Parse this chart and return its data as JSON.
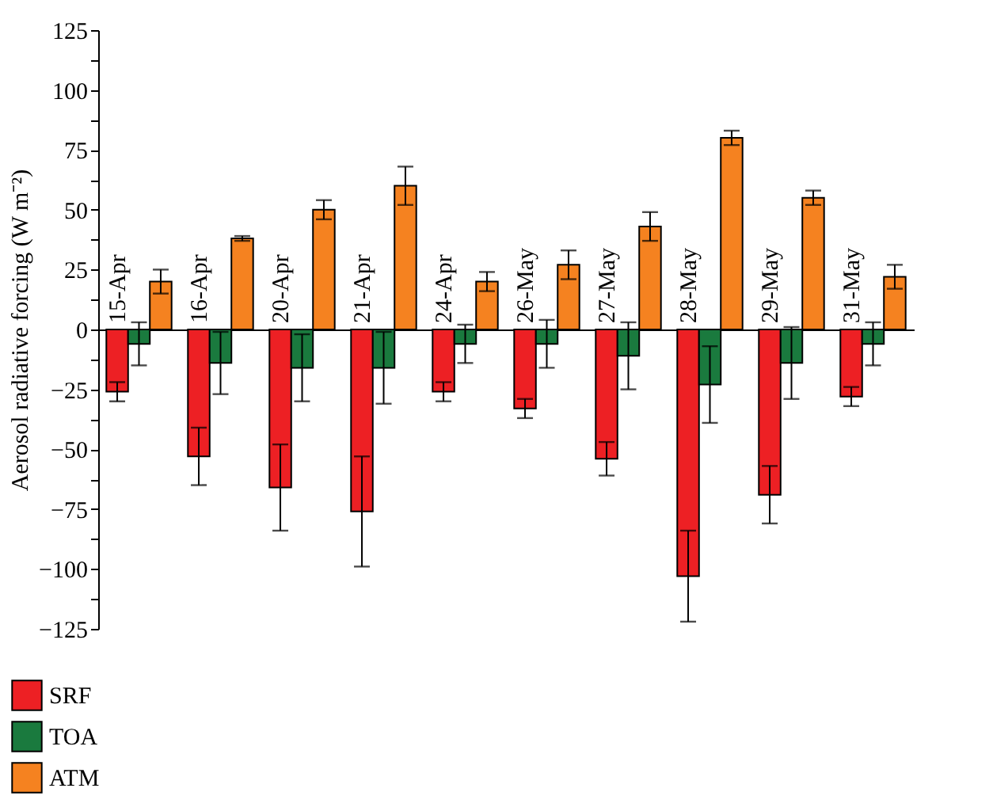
{
  "chart_data": {
    "type": "bar",
    "ylabel": "Aerosol radiative forcing (W m⁻²)",
    "categories": [
      "15-Apr",
      "16-Apr",
      "20-Apr",
      "21-Apr",
      "24-Apr",
      "26-May",
      "27-May",
      "28-May",
      "29-May",
      "31-May"
    ],
    "series": [
      {
        "name": "SRF",
        "color": "#ed2024",
        "values": [
          -26,
          -53,
          -66,
          -76,
          -26,
          -33,
          -54,
          -103,
          -69,
          -28
        ],
        "errors": [
          4,
          12,
          18,
          23,
          4,
          4,
          7,
          19,
          12,
          4
        ]
      },
      {
        "name": "TOA",
        "color": "#1a7a3e",
        "values": [
          -6,
          -14,
          -16,
          -16,
          -6,
          -6,
          -11,
          -23,
          -14,
          -6
        ],
        "errors": [
          9,
          13,
          14,
          15,
          8,
          10,
          14,
          16,
          15,
          9
        ]
      },
      {
        "name": "ATM",
        "color": "#f58220",
        "values": [
          20,
          38,
          50,
          60,
          20,
          27,
          43,
          80,
          55,
          22
        ],
        "errors": [
          5,
          1,
          4,
          8,
          4,
          6,
          6,
          3,
          3,
          5
        ]
      }
    ],
    "ylim": [
      -125,
      125
    ],
    "yticks": [
      -125,
      {
        "value": -112.5,
        "label": null
      },
      -100,
      {
        "value": -87.5,
        "label": null
      },
      -75,
      {
        "value": -62.5,
        "label": null
      },
      -50,
      {
        "value": -37.5,
        "label": null
      },
      -25,
      {
        "value": -12.5,
        "label": null
      },
      0,
      {
        "value": 12.5,
        "label": null
      },
      25,
      {
        "value": 37.5,
        "label": null
      },
      50,
      {
        "value": 62.5,
        "label": null
      },
      75,
      {
        "value": 87.5,
        "label": null
      },
      100,
      {
        "value": 112.5,
        "label": null
      },
      125
    ],
    "grid": false,
    "legend": "bottom left"
  }
}
